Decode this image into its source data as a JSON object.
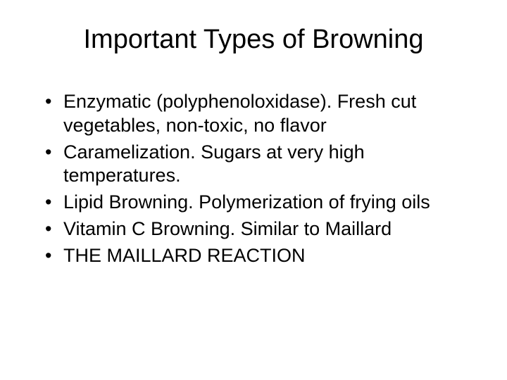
{
  "slide": {
    "title": "Important Types of Browning",
    "title_fontsize": 38,
    "body_fontsize": 27,
    "background_color": "#ffffff",
    "text_color": "#000000",
    "font_family": "Arial",
    "bullets": [
      "Enzymatic (polyphenoloxidase).  Fresh cut vegetables, non-toxic, no flavor",
      "Caramelization.  Sugars at very high temperatures.",
      "Lipid Browning.  Polymerization of frying oils",
      "Vitamin C Browning.  Similar to Maillard",
      "THE MAILLARD REACTION"
    ]
  }
}
